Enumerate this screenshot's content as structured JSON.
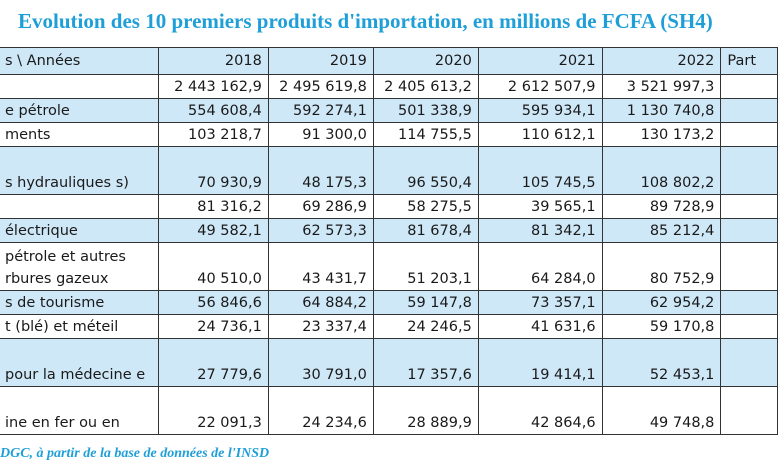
{
  "title": "Evolution des 10 premiers produits d'importation, en millions de FCFA (SH4)",
  "header": {
    "first": "s \\ Années",
    "years": [
      "2018",
      "2019",
      "2020",
      "2021",
      "2022"
    ],
    "last": "Part"
  },
  "rows": [
    {
      "label": "",
      "values": [
        "2 443 162,9",
        "2 495 619,8",
        "2 405 613,2",
        "2 612 507,9",
        "3 521 997,3"
      ]
    },
    {
      "label": "e pétrole",
      "values": [
        "554 608,4",
        "592 274,1",
        "501 338,9",
        "595 934,1",
        "1 130 740,8"
      ]
    },
    {
      "label": "ments",
      "values": [
        "103 218,7",
        "91 300,0",
        "114 755,5",
        "110 612,1",
        "130 173,2"
      ]
    },
    {
      "label": "s hydrauliques s)",
      "values": [
        "70 930,9",
        "48 175,3",
        "96 550,4",
        "105 745,5",
        "108 802,2"
      ]
    },
    {
      "label": "",
      "values": [
        "81 316,2",
        "69 286,9",
        "58 275,5",
        "39 565,1",
        "89 728,9"
      ]
    },
    {
      "label": "électrique",
      "values": [
        "49 582,1",
        "62 573,3",
        "81 678,4",
        "81 342,1",
        "85 212,4"
      ]
    },
    {
      "label": "pétrole et autres rbures gazeux",
      "values": [
        "40 510,0",
        "43 431,7",
        "51 203,1",
        "64 284,0",
        "80 752,9"
      ]
    },
    {
      "label": "s de tourisme",
      "values": [
        "56 846,6",
        "64 884,2",
        "59 147,8",
        "73 357,1",
        "62 954,2"
      ]
    },
    {
      "label": "t (blé) et méteil",
      "values": [
        "24 736,1",
        "23 337,4",
        "24 246,5",
        "41 631,6",
        "59 170,8"
      ]
    },
    {
      "label": "pour la médecine e",
      "values": [
        "27 779,6",
        "30 791,0",
        "17 357,6",
        "19 414,1",
        "52 453,1"
      ]
    },
    {
      "label": "ine en fer ou en",
      "values": [
        "22 091,3",
        "24 234,6",
        "28 889,9",
        "42 864,6",
        "49 748,8"
      ]
    }
  ],
  "source": "DGC, à partir de la base de données de l'INSD"
}
